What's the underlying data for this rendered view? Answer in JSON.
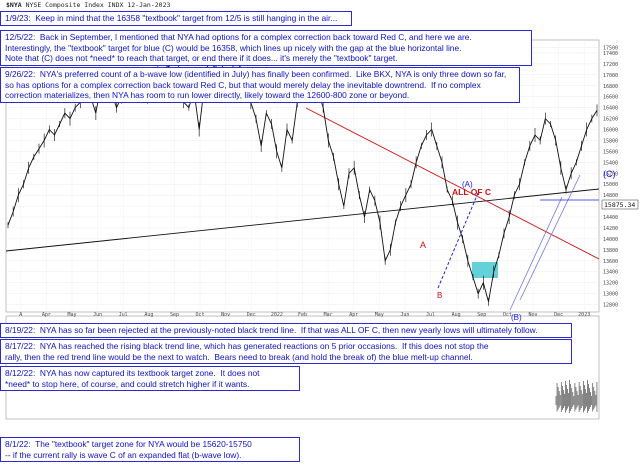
{
  "header": {
    "ticker": "$NYA",
    "name": "NYSE Composite Index INDX",
    "date": "12-Jan-2023",
    "price_label": "15875.34"
  },
  "notes": [
    {
      "id": "note-1-9-23",
      "lines": [
        "1/9/23:  Keep in mind that the 16358 \"textbook\" target from 12/5 is still hanging in the air..."
      ]
    },
    {
      "id": "note-12-5-22",
      "lines": [
        "12/5/22:  Back in September, I mentioned that NYA had options for a complex correction back toward Red C, and here we are.",
        "Interestingly, the \"textbook\" target for blue (C) would be 16358, which lines up nicely with the gap at the blue horizontal line.",
        "Note that (C) does not *need* to reach that target, or end there if it does... it's merely the \"textbook\" target."
      ]
    },
    {
      "id": "note-9-26-22",
      "lines": [
        "9/26/22:  NYA's preferred count of a b-wave low (identified in July) has finally been confirmed.  Like BKX, NYA is only three down so far,",
        "so has options for a complex correction back toward Red C, but that would merely delay the inevitable downtrend.  If no complex",
        "correction materializes, then NYA has room to run lower directly, likely toward the 12600-800 zone or beyond."
      ]
    },
    {
      "id": "note-8-19-22",
      "lines": [
        "8/19/22:  NYA has so far been rejected at the previously-noted black trend line.  If that was ALL OF C, then new yearly lows will ultimately follow."
      ]
    },
    {
      "id": "note-8-17-22",
      "lines": [
        "8/17/22:  NYA has reached the rising black trend line, which has generated reactions on 5 prior occasions.  If this does not stop the",
        "rally, then the red trend line would be the next to watch.  Bears need to break (and hold the break of) the blue melt-up channel."
      ]
    },
    {
      "id": "note-8-12-22",
      "lines": [
        "8/12/22:  NYA has now captured its textbook target zone.  It does not",
        "*need* to stop here, of course, and could stretch higher if it wants."
      ]
    },
    {
      "id": "note-8-1-22",
      "lines": [
        "8/1/22:  The \"textbook\" target zone for NYA would be 15620-15750",
        "-- if the current rally is wave C of an expanded flat (b-wave low)."
      ]
    }
  ],
  "labels": {
    "all_of_c": "ALL OF C",
    "red_a": "A",
    "red_b": "B",
    "blue_a": "(A)",
    "blue_b": "(B)",
    "blue_c": "(C)"
  },
  "chart_data": {
    "type": "line",
    "title": "NYSE Composite Index INDX",
    "x_tick_labels": [
      "A",
      "Apr",
      "May",
      "Jun",
      "Jul",
      "Aug",
      "Sep",
      "Oct",
      "Nov",
      "Dec",
      "2022",
      "Feb",
      "Mar",
      "Apr",
      "May",
      "Jun",
      "Jul",
      "Aug",
      "Sep",
      "Oct",
      "Nov",
      "Dec",
      "2023"
    ],
    "y_tick_labels": [
      "17500",
      "17400",
      "17200",
      "17000",
      "16800",
      "16600",
      "16400",
      "16200",
      "16000",
      "15800",
      "15600",
      "15400",
      "15200",
      "15000",
      "14800",
      "14600",
      "14400",
      "14200",
      "14000",
      "13800",
      "13600",
      "13400",
      "13200",
      "13000",
      "12800"
    ],
    "ylim": [
      12700,
      17600
    ],
    "series": [
      {
        "values": [
          14250,
          14500,
          14800,
          15000,
          15300,
          15500,
          15650,
          15800,
          16000,
          15900,
          16100,
          16300,
          16200,
          16400,
          16500,
          16700,
          16600,
          16300,
          16800,
          16900,
          16700,
          16400,
          16600,
          16850,
          16900,
          17000,
          16800,
          16600,
          16900,
          17100,
          17000,
          17200,
          16900,
          17100,
          16500,
          16400,
          16700,
          16000,
          16800,
          17400,
          17100,
          17300,
          17000,
          16800,
          17450,
          17100,
          16800,
          16500,
          16200,
          15700,
          16300,
          16100,
          15600,
          15300,
          16000,
          15800,
          16500,
          16900,
          16800,
          17000,
          16700,
          16400,
          15800,
          15500,
          15000,
          14600,
          15200,
          15300,
          14800,
          14400,
          14900,
          14700,
          14300,
          13600,
          13800,
          14300,
          14600,
          14800,
          15000,
          15400,
          15700,
          15900,
          16000,
          15700,
          15400,
          14900,
          14700,
          14300,
          14000,
          13600,
          13300,
          13000,
          13200,
          12850,
          13400,
          13700,
          14100,
          14400,
          14800,
          15000,
          15400,
          15700,
          15900,
          15800,
          16200,
          16100,
          15800,
          15300,
          14900,
          15200,
          15400,
          15700,
          16000,
          16200,
          16350
        ]
      }
    ],
    "annotation_marks": [
      "A",
      "B",
      "(A)",
      "(B)",
      "(C)",
      "ALL OF C"
    ]
  }
}
